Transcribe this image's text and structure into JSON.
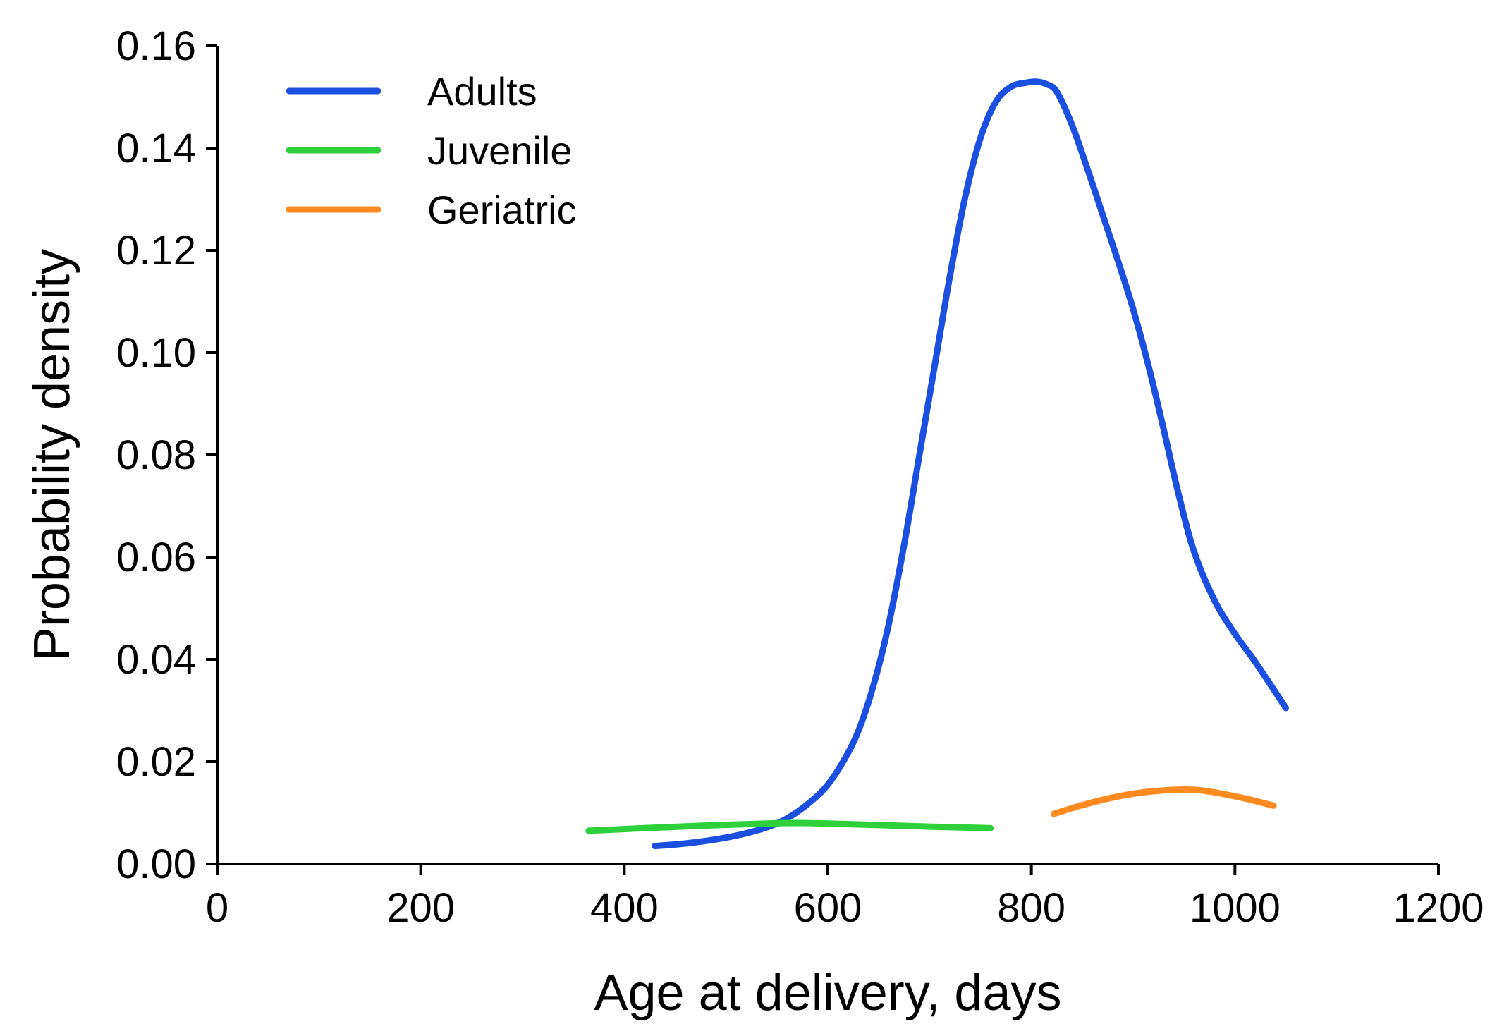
{
  "chart_data": {
    "type": "line",
    "title": "",
    "xlabel": "Age at delivery, days",
    "ylabel": "Probability density",
    "xlim": [
      0,
      1200
    ],
    "ylim": [
      0,
      0.16
    ],
    "x_ticks": [
      0,
      200,
      400,
      600,
      800,
      1000,
      1200
    ],
    "x_tick_labels": [
      "0",
      "200",
      "400",
      "600",
      "800",
      "1000",
      "1200"
    ],
    "y_ticks": [
      0,
      0.02,
      0.04,
      0.06,
      0.08,
      0.1,
      0.12,
      0.14,
      0.16
    ],
    "y_tick_labels": [
      "0.00",
      "0.02",
      "0.04",
      "0.06",
      "0.08",
      "0.10",
      "0.12",
      "0.14",
      "0.16"
    ],
    "grid": false,
    "legend_position": "top-left",
    "series": [
      {
        "name": "Adults",
        "color": "#1a4fe0",
        "x": [
          430,
          460,
          490,
          520,
          545,
          565,
          585,
          600,
          615,
          630,
          645,
          660,
          675,
          690,
          705,
          720,
          735,
          750,
          765,
          780,
          795,
          805,
          815,
          825,
          840,
          855,
          870,
          885,
          900,
          915,
          930,
          945,
          960,
          980,
          1000,
          1020,
          1050
        ],
        "y": [
          0.0035,
          0.004,
          0.0048,
          0.006,
          0.0075,
          0.0095,
          0.0125,
          0.0155,
          0.02,
          0.026,
          0.035,
          0.047,
          0.0625,
          0.08,
          0.0975,
          0.115,
          0.1305,
          0.142,
          0.149,
          0.152,
          0.1528,
          0.153,
          0.1525,
          0.151,
          0.1445,
          0.136,
          0.127,
          0.118,
          0.1085,
          0.0975,
          0.085,
          0.072,
          0.061,
          0.0515,
          0.045,
          0.0395,
          0.0305
        ]
      },
      {
        "name": "Juvenile",
        "color": "#2fd13a",
        "x": [
          365,
          420,
          480,
          540,
          570,
          600,
          650,
          700,
          760
        ],
        "y": [
          0.0065,
          0.007,
          0.0075,
          0.0079,
          0.008,
          0.0079,
          0.0076,
          0.0073,
          0.007
        ]
      },
      {
        "name": "Geriatric",
        "color": "#ff8a1f",
        "x": [
          822,
          850,
          880,
          910,
          940,
          960,
          980,
          1010,
          1038
        ],
        "y": [
          0.0098,
          0.0115,
          0.013,
          0.014,
          0.0145,
          0.0145,
          0.014,
          0.0128,
          0.0114
        ]
      }
    ]
  }
}
